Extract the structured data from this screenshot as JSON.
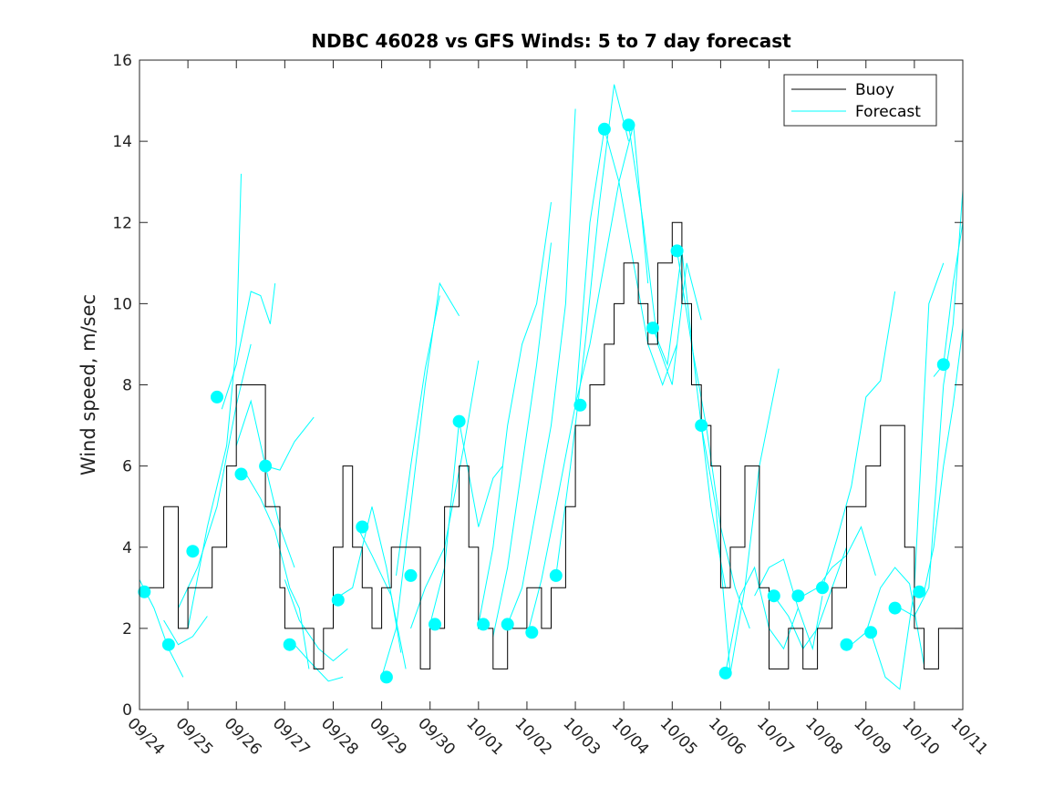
{
  "chart_data": {
    "type": "line",
    "title": "NDBC 46028 vs GFS Winds: 5 to 7 day forecast",
    "xlabel": "",
    "ylabel": "Wind speed, m/sec",
    "xlim": [
      0,
      17
    ],
    "ylim": [
      0,
      16
    ],
    "yticks": [
      0,
      2,
      4,
      6,
      8,
      10,
      12,
      14,
      16
    ],
    "xtick_labels": [
      "09/24",
      "09/25",
      "09/26",
      "09/27",
      "09/28",
      "09/29",
      "09/30",
      "10/01",
      "10/02",
      "10/03",
      "10/04",
      "10/05",
      "10/06",
      "10/07",
      "10/08",
      "10/09",
      "10/10",
      "10/11"
    ],
    "colors": {
      "buoy": "#000000",
      "forecast": "#00ffff",
      "axis": "#262626",
      "background": "#ffffff"
    },
    "legend": {
      "position": "top-right",
      "entries": [
        "Buoy",
        "Forecast"
      ]
    },
    "series": [
      {
        "name": "Buoy",
        "x": [
          0,
          0.5,
          0.8,
          1,
          1.5,
          1.8,
          2,
          2.3,
          2.6,
          2.9,
          3,
          3.3,
          3.6,
          3.8,
          4,
          4.2,
          4.4,
          4.6,
          4.8,
          5,
          5.2,
          5.5,
          5.8,
          6,
          6.3,
          6.6,
          6.8,
          7,
          7.3,
          7.6,
          7.8,
          8,
          8.3,
          8.5,
          8.8,
          9,
          9.3,
          9.6,
          9.8,
          10,
          10.3,
          10.5,
          10.7,
          11,
          11.2,
          11.4,
          11.6,
          11.8,
          12,
          12.2,
          12.5,
          12.8,
          13,
          13.2,
          13.4,
          13.7,
          14,
          14.3,
          14.6,
          14.8,
          15,
          15.3,
          15.5,
          15.8,
          16,
          16.2,
          16.5,
          17
        ],
        "values": [
          3,
          5,
          2,
          3,
          4,
          6,
          8,
          8,
          5,
          3,
          2,
          2,
          1,
          2,
          4,
          6,
          4,
          3,
          2,
          3,
          4,
          4,
          1,
          2,
          5,
          6,
          4,
          2,
          1,
          2,
          2,
          3,
          2,
          3,
          5,
          7,
          8,
          9,
          10,
          11,
          10,
          9,
          11,
          12,
          10,
          8,
          7,
          6,
          3,
          4,
          6,
          3,
          1,
          1,
          2,
          1,
          2,
          3,
          5,
          5,
          6,
          7,
          7,
          4,
          2,
          1,
          2,
          2
        ]
      },
      {
        "name": "Forecast",
        "segments": [
          {
            "x": [
              0,
              0.3,
              0.6,
              0.9
            ],
            "y": [
              3.2,
              2.5,
              1.5,
              0.8
            ]
          },
          {
            "x": [
              0.5,
              0.8,
              1.1,
              1.4
            ],
            "y": [
              2.2,
              1.6,
              1.8,
              2.3
            ]
          },
          {
            "x": [
              0.8,
              1.2,
              1.6,
              2.0,
              2.3
            ],
            "y": [
              2.5,
              3.5,
              5,
              7.5,
              9
            ]
          },
          {
            "x": [
              1.0,
              1.4,
              1.8,
              2.0,
              2.1
            ],
            "y": [
              2,
              4.5,
              6.5,
              9,
              13.2
            ]
          },
          {
            "x": [
              1.7,
              2.0,
              2.3,
              2.5,
              2.7,
              2.8
            ],
            "y": [
              7.4,
              8.5,
              10.3,
              10.2,
              9.5,
              10.5
            ]
          },
          {
            "x": [
              2.0,
              2.3,
              2.6,
              2.9,
              3.2
            ],
            "y": [
              6.5,
              7.6,
              6,
              4.5,
              3.5
            ]
          },
          {
            "x": [
              2.2,
              2.5,
              2.8,
              3.1,
              3.3,
              3.5
            ],
            "y": [
              5.8,
              5.2,
              4.4,
              3,
              2.5,
              1
            ]
          },
          {
            "x": [
              2.6,
              2.9,
              3.2,
              3.6
            ],
            "y": [
              6,
              5.9,
              6.6,
              7.2
            ]
          },
          {
            "x": [
              3.0,
              3.3,
              3.7,
              4.0,
              4.3
            ],
            "y": [
              3.2,
              2.2,
              1.5,
              1.2,
              1.5
            ]
          },
          {
            "x": [
              3.2,
              3.5,
              3.9,
              4.2
            ],
            "y": [
              1.6,
              1.2,
              0.7,
              0.8
            ]
          },
          {
            "x": [
              4.0,
              4.4,
              4.8,
              5.1,
              5.4
            ],
            "y": [
              2.7,
              3,
              5,
              3.5,
              1.4
            ]
          },
          {
            "x": [
              4.5,
              4.8,
              5.2,
              5.5
            ],
            "y": [
              4.5,
              3.8,
              2.8,
              1
            ]
          },
          {
            "x": [
              5.0,
              5.3,
              5.6,
              5.9,
              6.2,
              6.6
            ],
            "y": [
              0.8,
              2,
              5,
              8,
              10.5,
              9.7
            ]
          },
          {
            "x": [
              5.3,
              5.6,
              5.9,
              6.2
            ],
            "y": [
              3.3,
              6,
              8.4,
              10.2
            ]
          },
          {
            "x": [
              5.6,
              5.9,
              6.3,
              6.7,
              7.0
            ],
            "y": [
              2,
              3,
              4,
              6.5,
              8.6
            ]
          },
          {
            "x": [
              6.0,
              6.3,
              6.6,
              7.0,
              7.3,
              7.5
            ],
            "y": [
              2.1,
              3.5,
              7.1,
              4.5,
              5.7,
              6
            ]
          },
          {
            "x": [
              7.0,
              7.3,
              7.6,
              7.9,
              8.2,
              8.5
            ],
            "y": [
              2.1,
              4,
              7,
              9,
              10,
              12.5
            ]
          },
          {
            "x": [
              7.3,
              7.6,
              7.9,
              8.2,
              8.5
            ],
            "y": [
              1.8,
              3.5,
              6,
              8.5,
              11.5
            ]
          },
          {
            "x": [
              7.6,
              7.9,
              8.2,
              8.5,
              8.8,
              9.0
            ],
            "y": [
              2.1,
              3,
              5,
              7,
              10,
              14.8
            ]
          },
          {
            "x": [
              8.0,
              8.3,
              8.6,
              9.0,
              9.3,
              9.6
            ],
            "y": [
              1.8,
              3.2,
              5,
              7.5,
              12,
              14.3
            ]
          },
          {
            "x": [
              8.6,
              8.9,
              9.2,
              9.5,
              9.8,
              10.1
            ],
            "y": [
              3.3,
              6,
              9,
              12.5,
              15.4,
              14
            ]
          },
          {
            "x": [
              9.0,
              9.3,
              9.6,
              9.9,
              10.2,
              10.5
            ],
            "y": [
              7.5,
              9,
              11,
              13,
              14.4,
              10.5
            ]
          },
          {
            "x": [
              9.6,
              9.9,
              10.2,
              10.5,
              10.8,
              11.1
            ],
            "y": [
              14.3,
              13,
              11,
              9,
              8,
              9
            ]
          },
          {
            "x": [
              10.1,
              10.4,
              10.7,
              11.0,
              11.3,
              11.6
            ],
            "y": [
              14.4,
              12,
              9,
              8,
              11,
              9.6
            ]
          },
          {
            "x": [
              10.6,
              10.9,
              11.2,
              11.5,
              11.8,
              12.1
            ],
            "y": [
              9.4,
              8.5,
              11.3,
              8,
              5,
              3
            ]
          },
          {
            "x": [
              11.1,
              11.4,
              11.7,
              12.0,
              12.3,
              12.6
            ],
            "y": [
              11.3,
              9,
              7,
              4.5,
              3,
              2
            ]
          },
          {
            "x": [
              11.6,
              11.9,
              12.2,
              12.5,
              12.8,
              13.2
            ],
            "y": [
              7,
              5,
              0.9,
              3,
              6,
              8.4
            ]
          },
          {
            "x": [
              12.1,
              12.4,
              12.7,
              13.0,
              13.3,
              13.6
            ],
            "y": [
              0.9,
              2.8,
              3.5,
              2,
              1.5,
              2.5
            ]
          },
          {
            "x": [
              12.7,
              13.0,
              13.3,
              13.6,
              13.9,
              14.1
            ],
            "y": [
              2.8,
              3.5,
              3.7,
              2.5,
              1.5,
              2.8
            ]
          },
          {
            "x": [
              13.1,
              13.4,
              13.7,
              14.0,
              14.3,
              14.6
            ],
            "y": [
              2.8,
              2.3,
              1.5,
              2,
              3,
              4
            ]
          },
          {
            "x": [
              13.7,
              14.0,
              14.3,
              14.6,
              14.9,
              15.2
            ],
            "y": [
              2.8,
              3,
              3.5,
              3.8,
              4.5,
              3.3
            ]
          },
          {
            "x": [
              14.1,
              14.4,
              14.7,
              15.0,
              15.3,
              15.6
            ],
            "y": [
              3,
              4.2,
              5.5,
              7.7,
              8.1,
              10.3
            ]
          },
          {
            "x": [
              14.7,
              15.0,
              15.3,
              15.6,
              15.9,
              16.2
            ],
            "y": [
              1.6,
              1.9,
              3,
              3.5,
              3.1,
              1.1
            ]
          },
          {
            "x": [
              15.1,
              15.4,
              15.7,
              16.0,
              16.3,
              16.6
            ],
            "y": [
              1.9,
              0.8,
              0.5,
              3,
              10,
              11
            ]
          },
          {
            "x": [
              15.7,
              16.0,
              16.3,
              16.6,
              16.8,
              17.0
            ],
            "y": [
              2.5,
              2.3,
              3,
              8,
              9.5,
              12.8
            ]
          },
          {
            "x": [
              16.2,
              16.4,
              16.6,
              16.8,
              17.0
            ],
            "y": [
              2.9,
              4,
              6,
              7.5,
              9.4
            ]
          },
          {
            "x": [
              16.4,
              16.6,
              16.8,
              17.0
            ],
            "y": [
              8.2,
              8.5,
              10.5,
              12
            ]
          }
        ],
        "markers": {
          "x": [
            0.1,
            0.6,
            1.1,
            1.6,
            2.1,
            2.6,
            3.1,
            4.1,
            4.6,
            5.1,
            5.6,
            6.1,
            6.6,
            7.1,
            7.6,
            8.1,
            8.6,
            9.1,
            9.6,
            10.1,
            10.6,
            11.1,
            11.6,
            12.1,
            13.1,
            13.6,
            14.1,
            14.6,
            15.1,
            15.6,
            16.1,
            16.6
          ],
          "values": [
            2.9,
            1.6,
            3.9,
            7.7,
            5.8,
            6,
            1.6,
            2.7,
            4.5,
            0.8,
            3.3,
            2.1,
            7.1,
            2.1,
            2.1,
            1.9,
            3.3,
            7.5,
            14.3,
            14.4,
            9.4,
            11.3,
            7,
            0.9,
            2.8,
            2.8,
            3,
            1.6,
            1.9,
            2.5,
            2.9,
            8.5
          ]
        }
      }
    ]
  }
}
